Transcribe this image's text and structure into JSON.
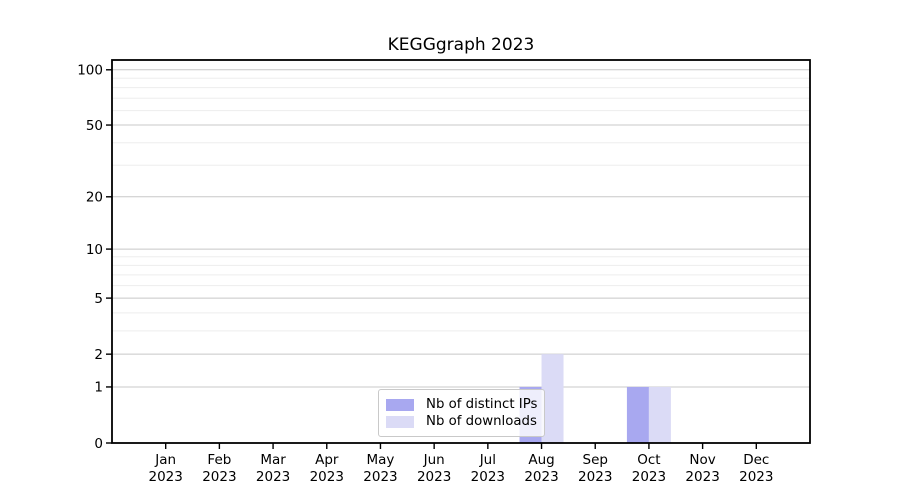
{
  "figure": {
    "background": "#ffffff"
  },
  "chart_data": {
    "type": "bar",
    "title": "KEGGgraph 2023",
    "categories": [
      "Jan 2023",
      "Feb 2023",
      "Mar 2023",
      "Apr 2023",
      "May 2023",
      "Jun 2023",
      "Jul 2023",
      "Aug 2023",
      "Sep 2023",
      "Oct 2023",
      "Nov 2023",
      "Dec 2023"
    ],
    "series": [
      {
        "name": "Nb of distinct IPs",
        "color": "#a8a8f0",
        "values": [
          0,
          0,
          0,
          0,
          0,
          0,
          0,
          1,
          0,
          1,
          0,
          0
        ]
      },
      {
        "name": "Nb of downloads",
        "color": "#dbdbf6",
        "values": [
          0,
          0,
          0,
          0,
          0,
          0,
          0,
          2,
          0,
          1,
          0,
          0
        ]
      }
    ],
    "xlabel": "",
    "ylabel": "",
    "yscale": "log1p",
    "ylim": [
      0,
      113
    ],
    "y_tick_labels": [
      "100",
      "50",
      "20",
      "10",
      "5",
      "2",
      "1",
      "0"
    ],
    "y_tick_values": [
      100,
      50,
      20,
      10,
      5,
      2,
      1,
      0
    ],
    "y_minor_gridlines": [
      3,
      4,
      6,
      7,
      8,
      9,
      30,
      40,
      60,
      70,
      80,
      90
    ],
    "grid": true,
    "legend": {
      "position": "lower-center-inside",
      "framealpha": 0.8
    }
  },
  "style": {
    "grid_major_color": "#c8c8c8",
    "grid_minor_color": "#ededed",
    "axis_color": "#000000",
    "tick_label_color": "#000000",
    "legend_border_color": "#c9c9c9"
  }
}
